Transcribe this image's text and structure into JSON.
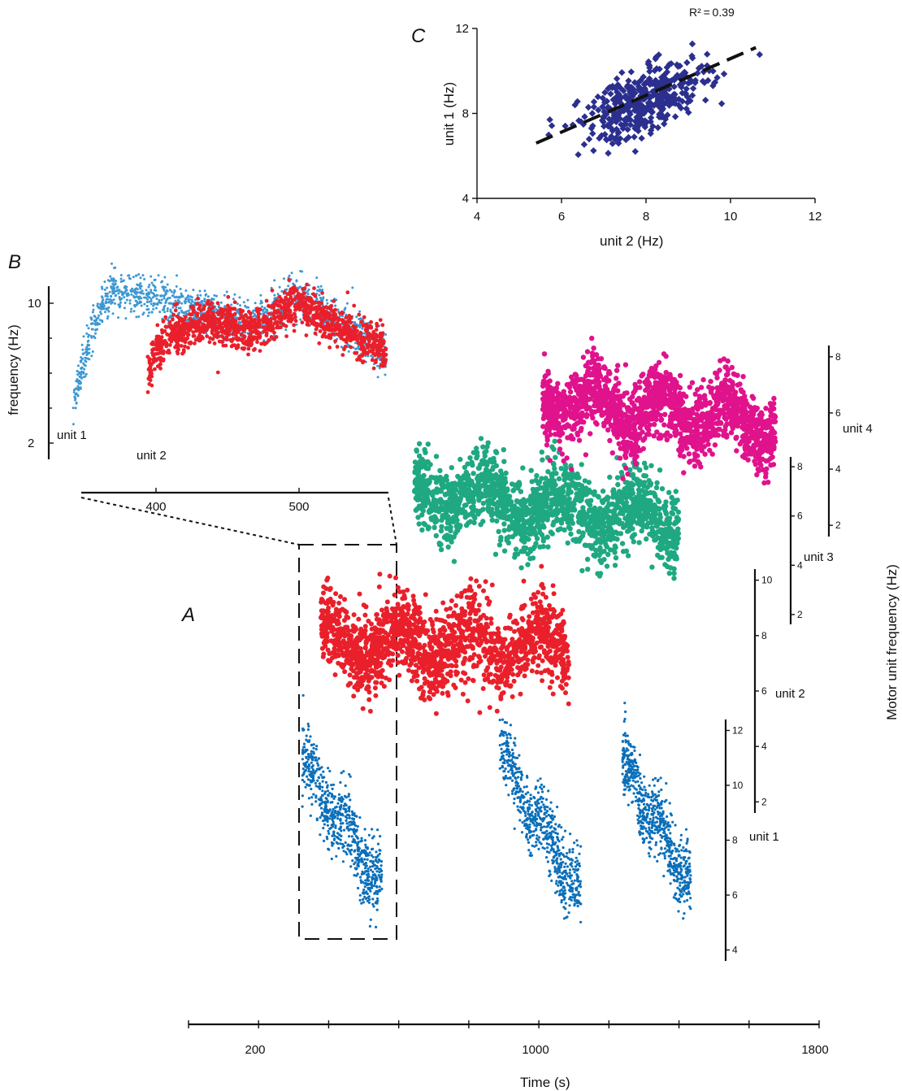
{
  "colors": {
    "unit1_A": "#0a6fba",
    "unit1_B": "#3c98d4",
    "unit2": "#e9202b",
    "unit3": "#1fa882",
    "unit4": "#e0128c",
    "scatter": "#2b2f8e",
    "axis": "#111111"
  },
  "panels": {
    "A": "A",
    "B": "B",
    "C": "C"
  },
  "chart_data": [
    {
      "id": "A",
      "type": "scatter",
      "xlabel": "Time (s)",
      "ylabel": "Motor unit frequency (Hz)",
      "x_ticks": [
        200,
        1000,
        1800
      ],
      "xlim": [
        0,
        1800
      ],
      "series": [
        {
          "name": "unit 1",
          "yticks": [
            4,
            6,
            8,
            10,
            12
          ],
          "segments": [
            {
              "x": [
                370,
                490
              ],
              "start": 11.0,
              "end": 6.2
            },
            {
              "x": [
                910,
                1080
              ],
              "start": 11.2,
              "end": 6.0
            },
            {
              "x": [
                1250,
                1430
              ],
              "start": 10.8,
              "end": 6.4
            }
          ]
        },
        {
          "name": "unit 2",
          "yticks": [
            2,
            4,
            6,
            8,
            10
          ],
          "segments": [
            {
              "x": [
                395,
                1070
              ],
              "start": 7.8,
              "end": 7.6
            }
          ]
        },
        {
          "name": "unit 3",
          "yticks": [
            2,
            4,
            6,
            8
          ],
          "segments": [
            {
              "x": [
                650,
                1400
              ],
              "start": 7.0,
              "end": 5.8
            }
          ]
        },
        {
          "name": "unit 4",
          "yticks": [
            2,
            4,
            6,
            8
          ],
          "segments": [
            {
              "x": [
                1010,
                1680
              ],
              "start": 6.5,
              "end": 5.6
            }
          ]
        }
      ]
    },
    {
      "id": "B",
      "type": "scatter",
      "ylabel": "frequency (Hz)",
      "x_ticks": [
        400,
        500
      ],
      "yticks": [
        2,
        10
      ],
      "xlim": [
        350,
        560
      ],
      "ylim": [
        2,
        11
      ],
      "series": [
        {
          "name": "unit 1",
          "x_range": [
            350,
            560
          ],
          "profile": [
            [
              350,
              4.2
            ],
            [
              365,
              8.5
            ],
            [
              375,
              10.2
            ],
            [
              400,
              10.0
            ],
            [
              440,
              9.0
            ],
            [
              470,
              8.4
            ],
            [
              500,
              10.0
            ],
            [
              520,
              9.0
            ],
            [
              560,
              6.8
            ]
          ]
        },
        {
          "name": "unit 2",
          "x_range": [
            400,
            560
          ],
          "profile": [
            [
              400,
              5.8
            ],
            [
              410,
              7.6
            ],
            [
              440,
              8.6
            ],
            [
              470,
              8.0
            ],
            [
              500,
              9.6
            ],
            [
              520,
              8.6
            ],
            [
              560,
              7.0
            ]
          ]
        }
      ]
    },
    {
      "id": "C",
      "type": "scatter",
      "xlabel": "unit 2 (Hz)",
      "ylabel": "unit 1 (Hz)",
      "xlim": [
        4,
        12
      ],
      "ylim": [
        4,
        12
      ],
      "x_ticks": [
        4,
        6,
        8,
        10,
        12
      ],
      "y_ticks": [
        4,
        8,
        12
      ],
      "annotation": "R² = 0.39",
      "regression": {
        "x": [
          5.4,
          10.6
        ],
        "y": [
          6.6,
          11.1
        ]
      },
      "cluster": {
        "n": 420,
        "mean_x": 8.0,
        "mean_y": 8.6,
        "sd_x": 0.75,
        "sd_y": 0.95,
        "corr": 0.62
      }
    }
  ]
}
